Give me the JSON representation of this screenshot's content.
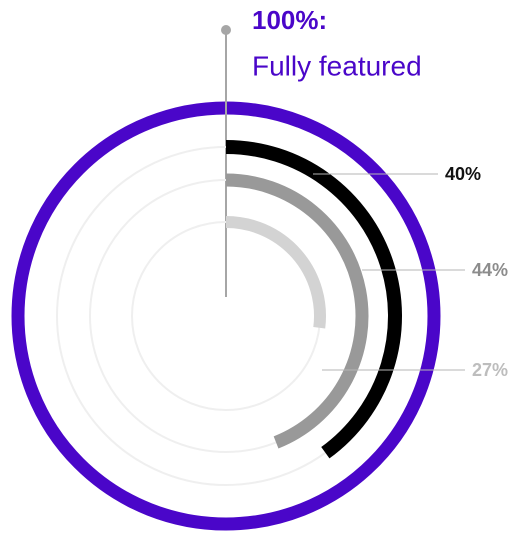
{
  "chart_data": {
    "type": "radial",
    "total": 100,
    "total_label": "100%:",
    "total_caption": "Fully featured",
    "total_color": "#4a06c9",
    "values": [
      40,
      44,
      27
    ],
    "value_labels": [
      "40%",
      "44%",
      "27%"
    ],
    "colors": [
      "#000000",
      "#999999",
      "#d3d3d3"
    ],
    "label_colors": [
      "#111111",
      "#8c8c8c",
      "#bdbdbd"
    ]
  }
}
